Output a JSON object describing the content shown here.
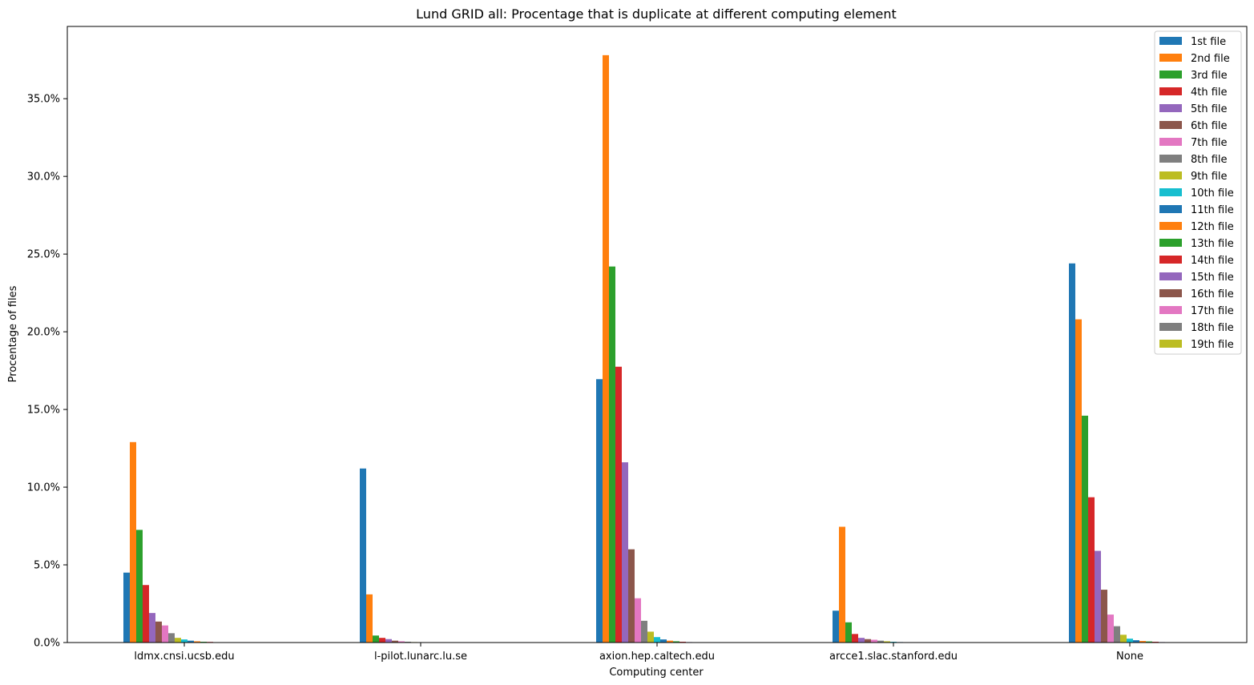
{
  "chart_data": {
    "type": "bar",
    "title": "Lund GRID all: Procentage that is duplicate at different computing element",
    "xlabel": "Computing center",
    "ylabel": "Procentage of files",
    "categories": [
      "ldmx.cnsi.ucsb.edu",
      "l-pilot.lunarc.lu.se",
      "axion.hep.caltech.edu",
      "arcce1.slac.stanford.edu",
      "None"
    ],
    "ylim": [
      0,
      39.65
    ],
    "yticks": [
      0,
      5,
      10,
      15,
      20,
      25,
      30,
      35
    ],
    "ytick_labels": [
      "0.0%",
      "5.0%",
      "10.0%",
      "15.0%",
      "20.0%",
      "25.0%",
      "30.0%",
      "35.0%"
    ],
    "legend_position": "top-right",
    "grid": false,
    "series": [
      {
        "name": "1st file",
        "color": "#1f77b4",
        "values": [
          4.5,
          11.2,
          16.95,
          2.05,
          24.4
        ]
      },
      {
        "name": "2nd file",
        "color": "#ff7f0e",
        "values": [
          12.9,
          3.1,
          37.8,
          7.45,
          20.8
        ]
      },
      {
        "name": "3rd file",
        "color": "#2ca02c",
        "values": [
          7.25,
          0.45,
          24.2,
          1.3,
          14.6
        ]
      },
      {
        "name": "4th file",
        "color": "#d62728",
        "values": [
          3.7,
          0.3,
          17.75,
          0.55,
          9.35
        ]
      },
      {
        "name": "5th file",
        "color": "#9467bd",
        "values": [
          1.9,
          0.22,
          11.6,
          0.3,
          5.9
        ]
      },
      {
        "name": "6th file",
        "color": "#8c564b",
        "values": [
          1.35,
          0.12,
          6.0,
          0.22,
          3.4
        ]
      },
      {
        "name": "7th file",
        "color": "#e377c2",
        "values": [
          1.1,
          0.08,
          2.85,
          0.18,
          1.8
        ]
      },
      {
        "name": "8th file",
        "color": "#7f7f7f",
        "values": [
          0.6,
          0.05,
          1.4,
          0.12,
          1.05
        ]
      },
      {
        "name": "9th file",
        "color": "#bcbd22",
        "values": [
          0.3,
          0.03,
          0.7,
          0.08,
          0.5
        ]
      },
      {
        "name": "10th file",
        "color": "#17becf",
        "values": [
          0.2,
          0.02,
          0.35,
          0.05,
          0.25
        ]
      },
      {
        "name": "11th file",
        "color": "#1f77b4",
        "values": [
          0.12,
          0.01,
          0.2,
          0.03,
          0.15
        ]
      },
      {
        "name": "12th file",
        "color": "#ff7f0e",
        "values": [
          0.08,
          0.0,
          0.12,
          0.02,
          0.1
        ]
      },
      {
        "name": "13th file",
        "color": "#2ca02c",
        "values": [
          0.05,
          0.0,
          0.08,
          0.01,
          0.07
        ]
      },
      {
        "name": "14th file",
        "color": "#d62728",
        "values": [
          0.04,
          0.0,
          0.05,
          0.0,
          0.05
        ]
      },
      {
        "name": "15th file",
        "color": "#9467bd",
        "values": [
          0.02,
          0.0,
          0.03,
          0.0,
          0.03
        ]
      },
      {
        "name": "16th file",
        "color": "#8c564b",
        "values": [
          0.01,
          0.0,
          0.02,
          0.0,
          0.02
        ]
      },
      {
        "name": "17th file",
        "color": "#e377c2",
        "values": [
          0.01,
          0.0,
          0.01,
          0.0,
          0.01
        ]
      },
      {
        "name": "18th file",
        "color": "#7f7f7f",
        "values": [
          0.0,
          0.0,
          0.01,
          0.0,
          0.01
        ]
      },
      {
        "name": "19th file",
        "color": "#bcbd22",
        "values": [
          0.0,
          0.0,
          0.0,
          0.0,
          0.0
        ]
      }
    ]
  }
}
